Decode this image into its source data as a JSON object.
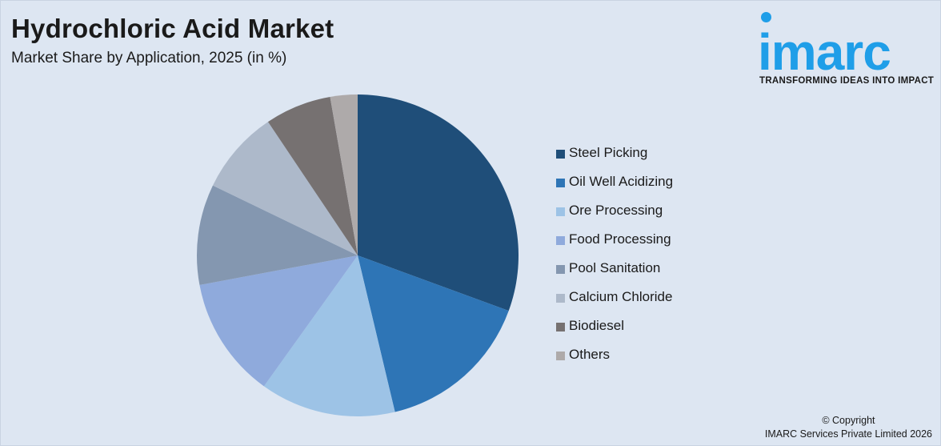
{
  "header": {
    "title": "Hydrochloric Acid Market",
    "subtitle": "Market Share by Application, 2025 (in %)"
  },
  "logo": {
    "word": "imarc",
    "tagline": "TRANSFORMING IDEAS INTO IMPACT",
    "color": "#1f9ee8"
  },
  "footer": {
    "line1": "© Copyright",
    "line2": "IMARC Services Private Limited 2026"
  },
  "chart_data": {
    "type": "pie",
    "title": "Hydrochloric Acid Market",
    "subtitle": "Market Share by Application, 2025 (in %)",
    "legend_position": "right",
    "start_angle": "top, clockwise",
    "slices": [
      {
        "label": "Steel Picking",
        "value": 31.2,
        "color": "#1f4e79"
      },
      {
        "label": "Oil Well Acidizing",
        "value": 16.0,
        "color": "#2e75b6"
      },
      {
        "label": "Ore Processing",
        "value": 13.9,
        "color": "#9dc3e6"
      },
      {
        "label": "Food Processing",
        "value": 12.4,
        "color": "#8faadc"
      },
      {
        "label": "Pool Sanitation",
        "value": 10.3,
        "color": "#8497b0"
      },
      {
        "label": "Calcium Chloride",
        "value": 8.6,
        "color": "#adb9ca"
      },
      {
        "label": "Biodiesel",
        "value": 6.8,
        "color": "#767171"
      },
      {
        "label": "Others",
        "value": 2.8,
        "color": "#aeaaaa"
      }
    ]
  }
}
